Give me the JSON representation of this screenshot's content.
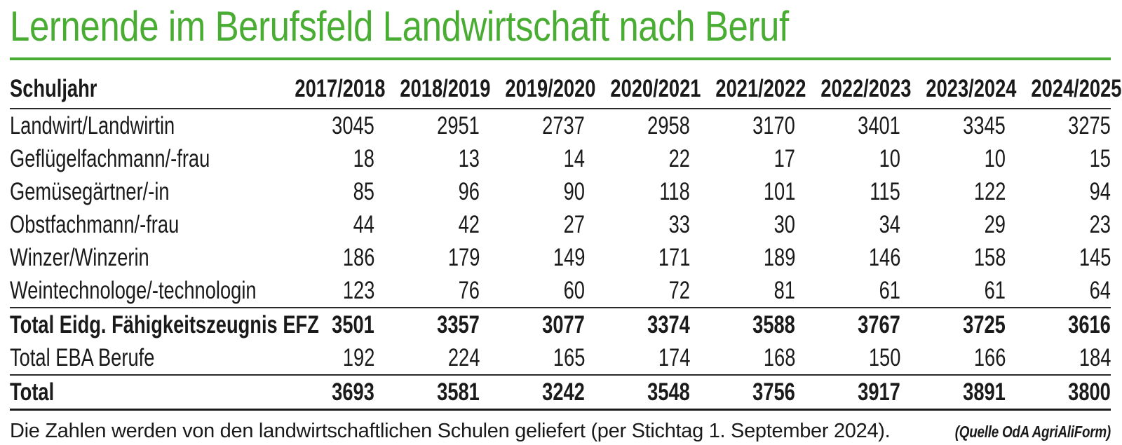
{
  "title": "Lernende im Berufsfeld Landwirtschaft nach Beruf",
  "colors": {
    "accent_green": "#4aad33",
    "text": "#1a1a1a",
    "rule_dark": "#2a2a2a"
  },
  "table": {
    "header": {
      "label": "Schuljahr",
      "years": [
        "2017/2018",
        "2018/2019",
        "2019/2020",
        "2020/2021",
        "2021/2022",
        "2022/2023",
        "2023/2024",
        "2024/2025"
      ]
    },
    "rows": [
      {
        "label": "Landwirt/Landwirtin",
        "values": [
          "3045",
          "2951",
          "2737",
          "2958",
          "3170",
          "3401",
          "3345",
          "3275"
        ],
        "bold": false,
        "rule_above": false,
        "rule_below": false
      },
      {
        "label": "Geflügelfachmann/-frau",
        "values": [
          "18",
          "13",
          "14",
          "22",
          "17",
          "10",
          "10",
          "15"
        ],
        "bold": false,
        "rule_above": false,
        "rule_below": false
      },
      {
        "label": "Gemüsegärtner/-in",
        "values": [
          "85",
          "96",
          "90",
          "118",
          "101",
          "115",
          "122",
          "94"
        ],
        "bold": false,
        "rule_above": false,
        "rule_below": false
      },
      {
        "label": "Obstfachmann/-frau",
        "values": [
          "44",
          "42",
          "27",
          "33",
          "30",
          "34",
          "29",
          "23"
        ],
        "bold": false,
        "rule_above": false,
        "rule_below": false
      },
      {
        "label": "Winzer/Winzerin",
        "values": [
          "186",
          "179",
          "149",
          "171",
          "189",
          "146",
          "158",
          "145"
        ],
        "bold": false,
        "rule_above": false,
        "rule_below": false
      },
      {
        "label": "Weintechnologe/-technologin",
        "values": [
          "123",
          "76",
          "60",
          "72",
          "81",
          "61",
          "61",
          "64"
        ],
        "bold": false,
        "rule_above": false,
        "rule_below": false
      },
      {
        "label": "Total Eidg. Fähigkeitszeugnis EFZ",
        "values": [
          "3501",
          "3357",
          "3077",
          "3374",
          "3588",
          "3767",
          "3725",
          "3616"
        ],
        "bold": true,
        "rule_above": true,
        "rule_below": false
      },
      {
        "label": "Total EBA Berufe",
        "values": [
          "192",
          "224",
          "165",
          "174",
          "168",
          "150",
          "166",
          "184"
        ],
        "bold": false,
        "rule_above": false,
        "rule_below": false
      },
      {
        "label": "Total",
        "values": [
          "3693",
          "3581",
          "3242",
          "3548",
          "3756",
          "3917",
          "3891",
          "3800"
        ],
        "bold": true,
        "rule_above": true,
        "rule_below": true
      }
    ]
  },
  "footer": {
    "note": "Die Zahlen werden von den landwirtschaftlichen Schulen geliefert (per Stichtag 1. September 2024).",
    "source": "(Quelle OdA AgriAliForm)"
  },
  "chart_data": {
    "type": "table",
    "title": "Lernende im Berufsfeld Landwirtschaft nach Beruf",
    "categories": [
      "2017/2018",
      "2018/2019",
      "2019/2020",
      "2020/2021",
      "2021/2022",
      "2022/2023",
      "2023/2024",
      "2024/2025"
    ],
    "series": [
      {
        "name": "Landwirt/Landwirtin",
        "values": [
          3045,
          2951,
          2737,
          2958,
          3170,
          3401,
          3345,
          3275
        ]
      },
      {
        "name": "Geflügelfachmann/-frau",
        "values": [
          18,
          13,
          14,
          22,
          17,
          10,
          10,
          15
        ]
      },
      {
        "name": "Gemüsegärtner/-in",
        "values": [
          85,
          96,
          90,
          118,
          101,
          115,
          122,
          94
        ]
      },
      {
        "name": "Obstfachmann/-frau",
        "values": [
          44,
          42,
          27,
          33,
          30,
          34,
          29,
          23
        ]
      },
      {
        "name": "Winzer/Winzerin",
        "values": [
          186,
          179,
          149,
          171,
          189,
          146,
          158,
          145
        ]
      },
      {
        "name": "Weintechnologe/-technologin",
        "values": [
          123,
          76,
          60,
          72,
          81,
          61,
          61,
          64
        ]
      },
      {
        "name": "Total Eidg. Fähigkeitszeugnis EFZ",
        "values": [
          3501,
          3357,
          3077,
          3374,
          3588,
          3767,
          3725,
          3616
        ]
      },
      {
        "name": "Total EBA Berufe",
        "values": [
          192,
          224,
          165,
          174,
          168,
          150,
          166,
          184
        ]
      },
      {
        "name": "Total",
        "values": [
          3693,
          3581,
          3242,
          3548,
          3756,
          3917,
          3891,
          3800
        ]
      }
    ]
  }
}
